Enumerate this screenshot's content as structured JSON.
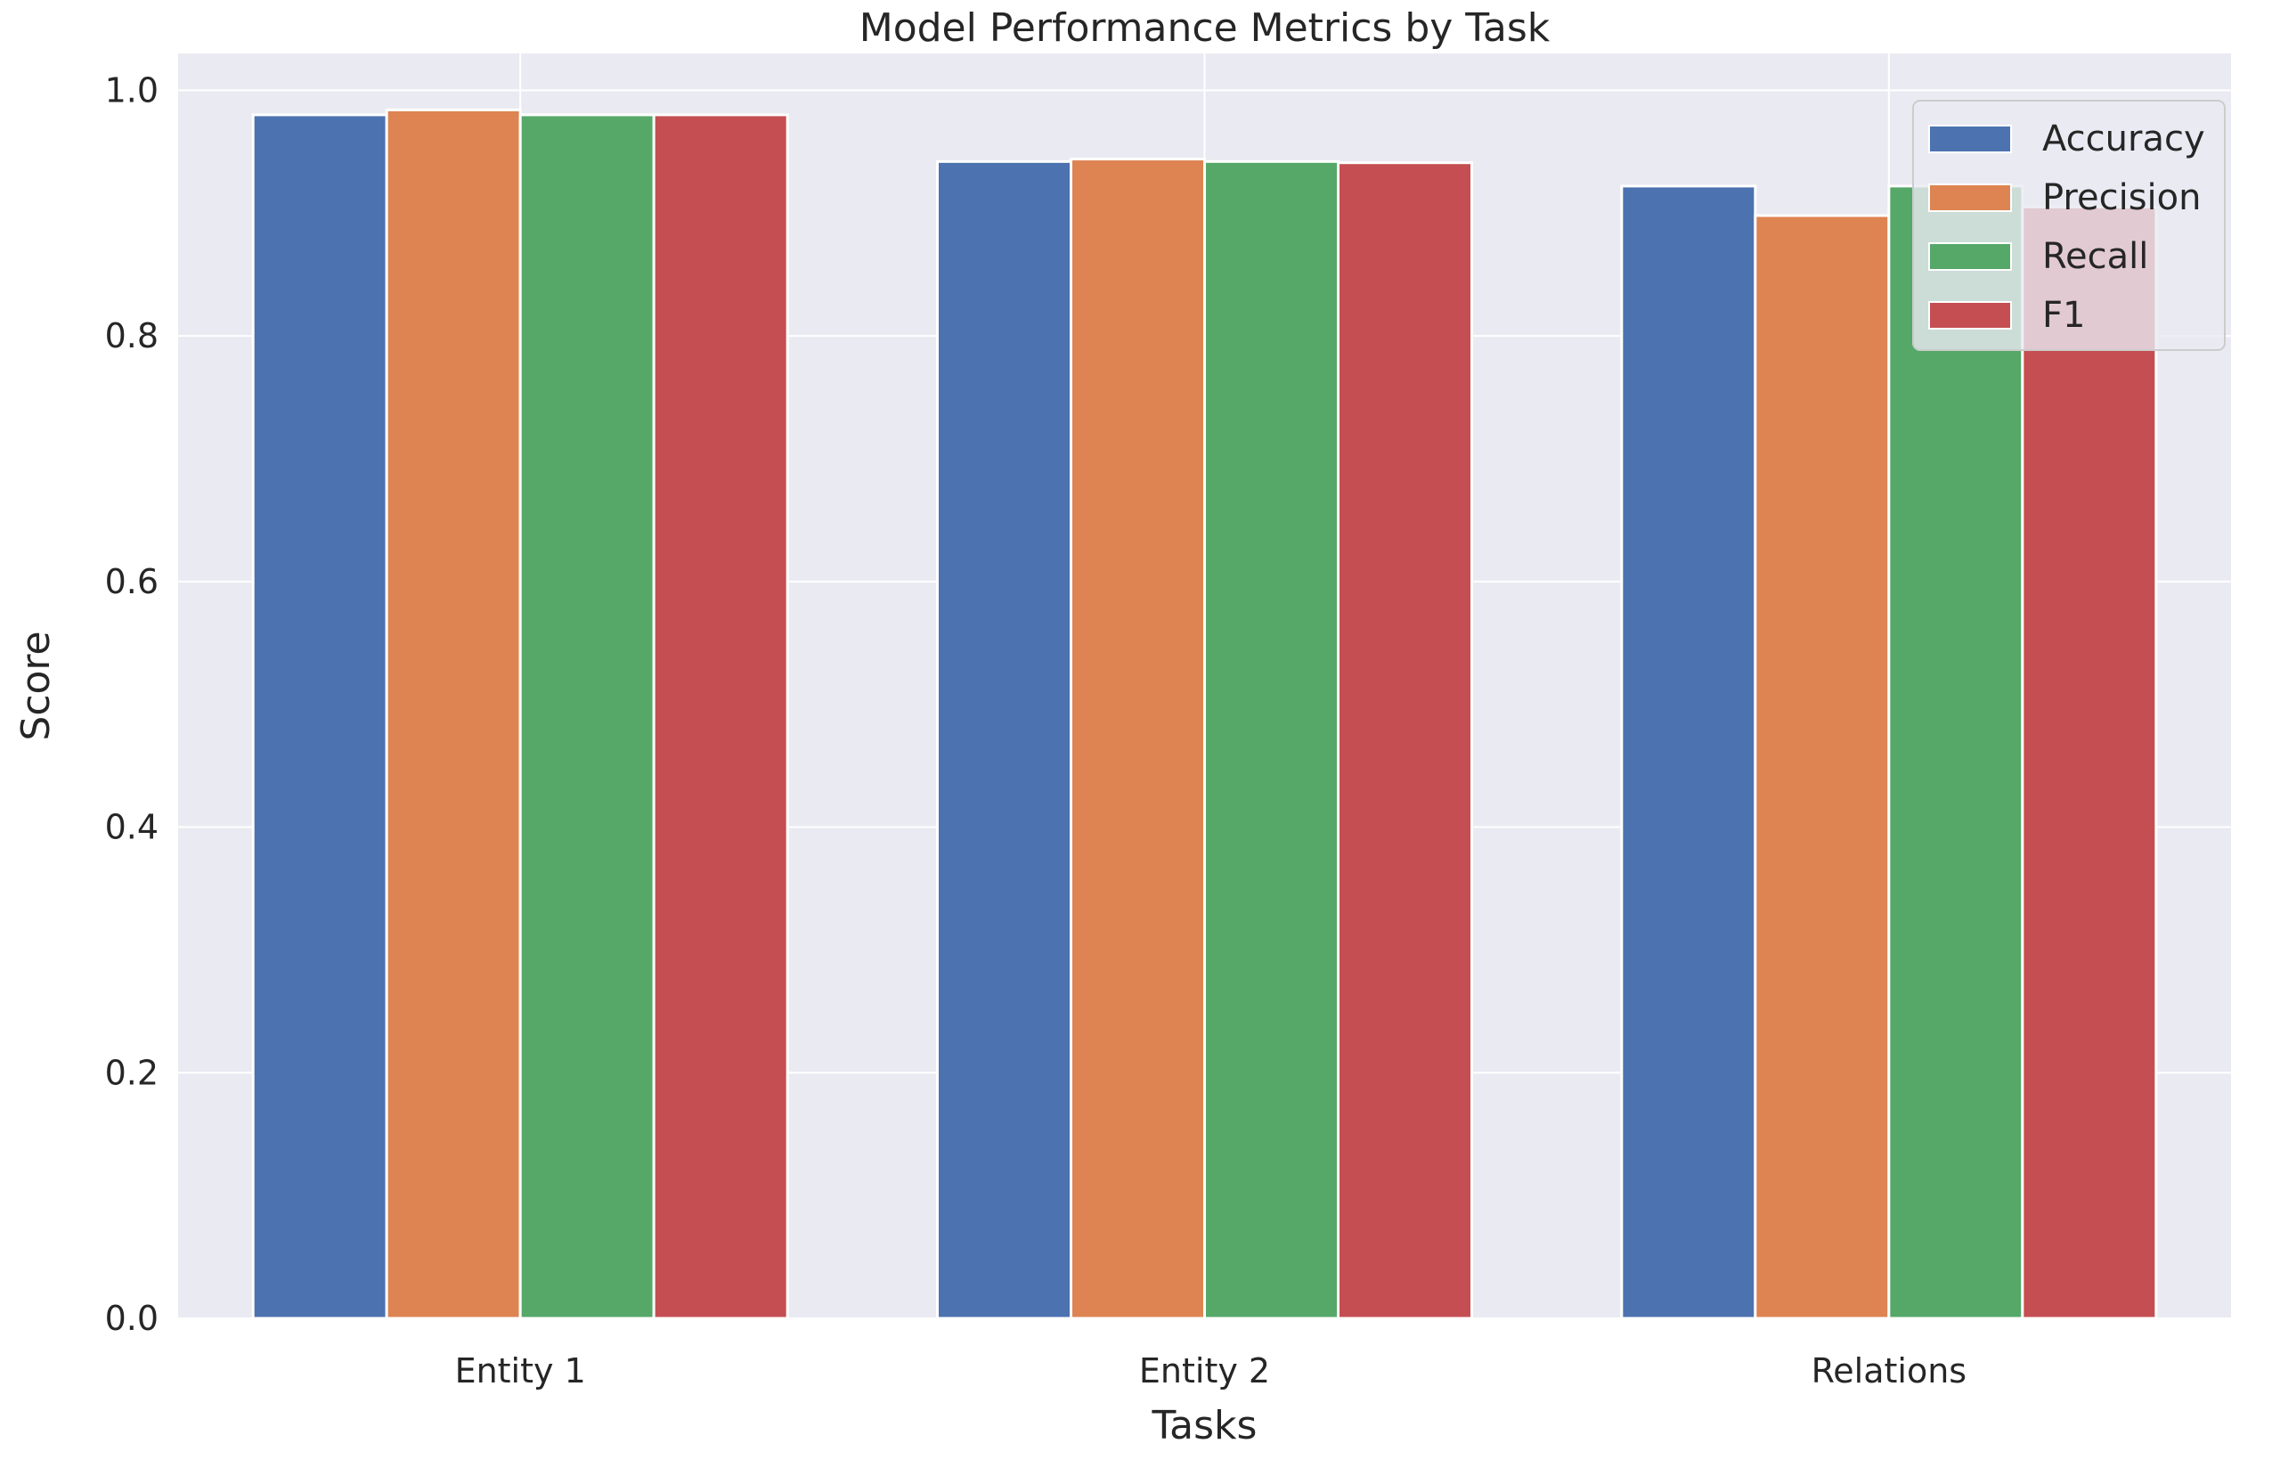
{
  "chart_data": {
    "type": "bar",
    "title": "Model Performance Metrics by Task",
    "xlabel": "Tasks",
    "ylabel": "Score",
    "categories": [
      "Entity 1",
      "Entity 2",
      "Relations"
    ],
    "series": [
      {
        "name": "Accuracy",
        "values": [
          0.98,
          0.942,
          0.922
        ],
        "color": "#4c72b0"
      },
      {
        "name": "Precision",
        "values": [
          0.984,
          0.944,
          0.898
        ],
        "color": "#dd8452"
      },
      {
        "name": "Recall",
        "values": [
          0.98,
          0.942,
          0.922
        ],
        "color": "#55a868"
      },
      {
        "name": "F1",
        "values": [
          0.98,
          0.941,
          0.905
        ],
        "color": "#c44e52"
      }
    ],
    "ylim": [
      0,
      1.03
    ],
    "yticks": [
      0.0,
      0.2,
      0.4,
      0.6,
      0.8,
      1.0
    ],
    "ytick_labels": [
      "0.0",
      "0.2",
      "0.4",
      "0.6",
      "0.8",
      "1.0"
    ],
    "grid": true,
    "legend_position": "top-right",
    "plot_background": "#eaeaf2",
    "grid_color": "#ffffff"
  }
}
